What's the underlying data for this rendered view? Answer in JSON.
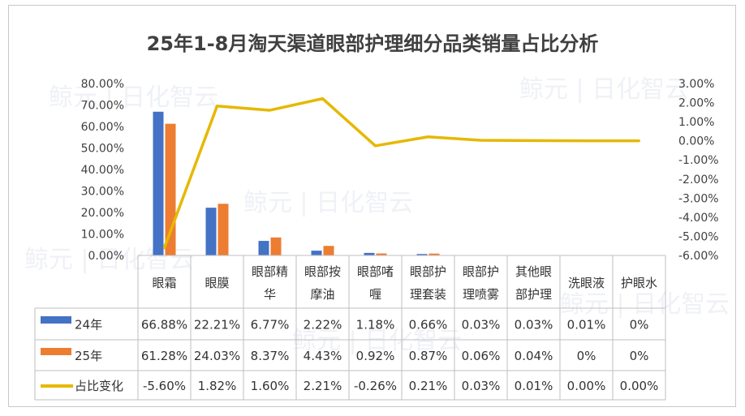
{
  "chart_data": {
    "type": "bar+line",
    "title": "25年1-8月淘天渠道眼部护理细分品类销量占比分析",
    "categories": [
      [
        "眼霜"
      ],
      [
        "眼膜"
      ],
      [
        "眼部精",
        "华"
      ],
      [
        "眼部按",
        "摩油"
      ],
      [
        "眼部啫",
        "喱"
      ],
      [
        "眼部护",
        "理套装"
      ],
      [
        "眼部护",
        "理喷雾"
      ],
      [
        "其他眼",
        "部护理"
      ],
      [
        "洗眼液"
      ],
      [
        "护眼水"
      ]
    ],
    "series": [
      {
        "name": "24年",
        "type": "bar",
        "axis": "left",
        "color": "#4472C4",
        "values": [
          66.88,
          22.21,
          6.77,
          2.22,
          1.18,
          0.66,
          0.03,
          0.03,
          0.01,
          0
        ],
        "labels": [
          "66.88%",
          "22.21%",
          "6.77%",
          "2.22%",
          "1.18%",
          "0.66%",
          "0.03%",
          "0.03%",
          "0.01%",
          "0%"
        ]
      },
      {
        "name": "25年",
        "type": "bar",
        "axis": "left",
        "color": "#ED7D31",
        "values": [
          61.28,
          24.03,
          8.37,
          4.43,
          0.92,
          0.87,
          0.06,
          0.04,
          0,
          0
        ],
        "labels": [
          "61.28%",
          "24.03%",
          "8.37%",
          "4.43%",
          "0.92%",
          "0.87%",
          "0.06%",
          "0.04%",
          "0%",
          "0%"
        ]
      },
      {
        "name": "占比变化",
        "type": "line",
        "axis": "right",
        "color": "#E6B800",
        "values": [
          -5.6,
          1.82,
          1.6,
          2.21,
          -0.26,
          0.21,
          0.03,
          0.01,
          0.0,
          0.0
        ],
        "labels": [
          "-5.60%",
          "1.82%",
          "1.60%",
          "2.21%",
          "-0.26%",
          "0.21%",
          "0.03%",
          "0.01%",
          "0.00%",
          "0.00%"
        ]
      }
    ],
    "y_left": {
      "min": 0,
      "max": 80,
      "step": 10,
      "ticks": [
        "0.00%",
        "10.00%",
        "20.00%",
        "30.00%",
        "40.00%",
        "50.00%",
        "60.00%",
        "70.00%",
        "80.00%"
      ]
    },
    "y_right": {
      "min": -6,
      "max": 3,
      "step": 1,
      "ticks": [
        "-6.00%",
        "-5.00%",
        "-4.00%",
        "-3.00%",
        "-2.00%",
        "-1.00%",
        "0.00%",
        "1.00%",
        "2.00%",
        "3.00%"
      ]
    },
    "grid": false,
    "legend": "data-table"
  },
  "watermark": "鲸元 | 日化智云"
}
